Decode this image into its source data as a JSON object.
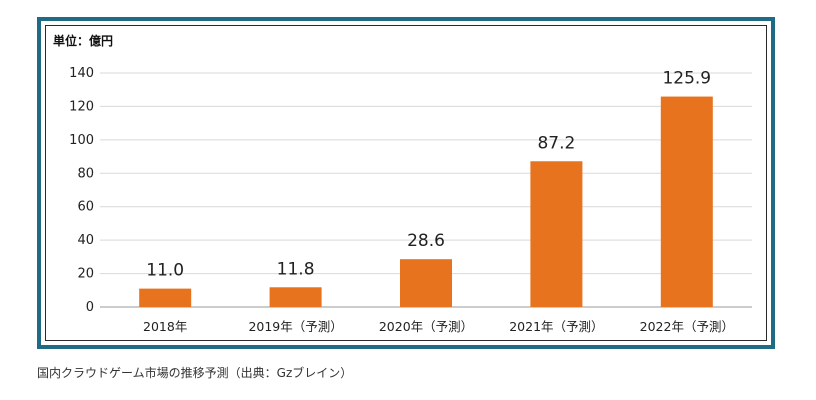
{
  "chart_data": {
    "type": "bar",
    "unit_label": "単位：億円",
    "categories": [
      "2018年",
      "2019年（予測）",
      "2020年（予測）",
      "2021年（予測）",
      "2022年（予測）"
    ],
    "values": [
      11.0,
      11.8,
      28.6,
      87.2,
      125.9
    ],
    "data_labels": [
      "11.0",
      "11.8",
      "28.6",
      "87.2",
      "125.9"
    ],
    "ylim": [
      0,
      140
    ],
    "yticks": [
      0,
      20,
      40,
      60,
      80,
      100,
      120,
      140
    ],
    "grid": true,
    "bar_color": "#e8731f"
  },
  "caption": "国内クラウドゲーム市場の推移予測（出典：Gzブレイン）"
}
